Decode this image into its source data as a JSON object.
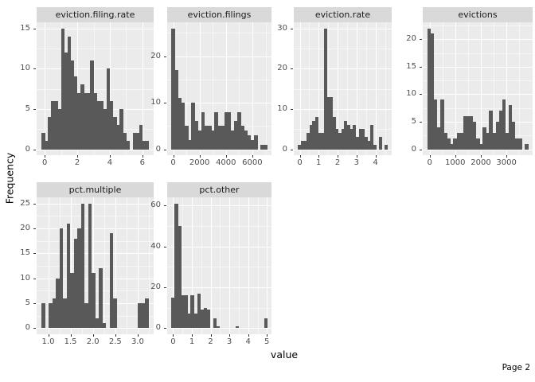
{
  "chart_data": {
    "type": "bar",
    "subtype": "faceted-histogram",
    "y_axis_title": "Frequency",
    "x_axis_title": "value",
    "page_label": "Page 2",
    "legend": "none",
    "grid": "on",
    "colors": {
      "bar": "#595959",
      "panel_bg": "#EBEBEB",
      "strip_bg": "#D9D9D9",
      "gridline": "#FFFFFF",
      "tick_text": "#4D4D4D",
      "strip_text": "#1A1A1A"
    },
    "facets": [
      {
        "title": "eviction.filing.rate",
        "x_tick_values": [
          0,
          2,
          4,
          6
        ],
        "x_tick_labels": [
          "0",
          "2",
          "4",
          "6"
        ],
        "y_ticks": [
          0,
          5,
          10,
          15
        ],
        "bin_start": -0.2,
        "bin_width": 0.2,
        "counts": [
          2,
          1,
          4,
          6,
          6,
          5,
          15,
          12,
          14,
          11,
          9,
          7,
          8,
          7,
          7,
          11,
          7,
          6,
          6,
          5,
          10,
          6,
          4,
          3,
          5,
          2,
          1,
          0,
          2,
          2,
          3,
          1,
          1
        ]
      },
      {
        "title": "eviction.filings",
        "x_tick_values": [
          0,
          2000,
          4000,
          6000
        ],
        "x_tick_labels": [
          "0",
          "2000",
          "4000",
          "6000"
        ],
        "y_ticks": [
          0,
          10,
          20
        ],
        "bin_start": -125,
        "bin_width": 250,
        "counts": [
          26,
          17,
          11,
          10,
          5,
          2,
          10,
          6,
          4,
          8,
          5,
          5,
          4,
          8,
          5,
          5,
          8,
          8,
          4,
          6,
          8,
          5,
          4,
          3,
          2,
          3,
          0,
          1,
          1
        ]
      },
      {
        "title": "eviction.rate",
        "x_tick_values": [
          0,
          1,
          2,
          3,
          4
        ],
        "x_tick_labels": [
          "0",
          "1",
          "2",
          "3",
          "4"
        ],
        "y_ticks": [
          0,
          10,
          20,
          30
        ],
        "bin_start": -0.1,
        "bin_width": 0.153,
        "counts": [
          1,
          2,
          2,
          4,
          6,
          7,
          8,
          4,
          4,
          30,
          13,
          13,
          8,
          5,
          4,
          5,
          7,
          6,
          5,
          6,
          3,
          5,
          5,
          3,
          2,
          6,
          1,
          0,
          3,
          0,
          1
        ]
      },
      {
        "title": "evictions",
        "x_tick_values": [
          0,
          1000,
          2000,
          3000
        ],
        "x_tick_labels": [
          "0",
          "1000",
          "2000",
          "3000"
        ],
        "y_ticks": [
          0,
          5,
          10,
          15,
          20
        ],
        "bin_start": -92.5,
        "bin_width": 127,
        "counts": [
          22,
          21,
          9,
          4,
          9,
          3,
          2,
          1,
          2,
          3,
          3,
          6,
          6,
          6,
          5,
          2,
          1,
          4,
          3,
          7,
          3,
          5,
          7,
          9,
          3,
          8,
          5,
          2,
          2,
          0,
          1
        ]
      },
      {
        "title": "pct.multiple",
        "x_tick_values": [
          1.0,
          1.5,
          2.0,
          2.5,
          3.0
        ],
        "x_tick_labels": [
          "1.0",
          "1.5",
          "2.0",
          "2.5",
          "3.0"
        ],
        "y_ticks": [
          0,
          5,
          10,
          15,
          20,
          25
        ],
        "bin_start": 0.85,
        "bin_width": 0.08,
        "counts": [
          5,
          0,
          5,
          6,
          10,
          20,
          6,
          21,
          11,
          18,
          20,
          25,
          5,
          25,
          11,
          2,
          12,
          1,
          0,
          19,
          6,
          0,
          0,
          0,
          0,
          0,
          0,
          5,
          5,
          6
        ]
      },
      {
        "title": "pct.other",
        "x_tick_values": [
          0,
          1,
          2,
          3,
          4,
          5
        ],
        "x_tick_labels": [
          "0",
          "1",
          "2",
          "3",
          "4",
          "5"
        ],
        "y_ticks": [
          0,
          20,
          40,
          60
        ],
        "bin_start": -0.085,
        "bin_width": 0.17,
        "counts": [
          15,
          61,
          50,
          16,
          16,
          7,
          16,
          7,
          17,
          9,
          10,
          9,
          0,
          5,
          1,
          0,
          0,
          0,
          0,
          0,
          1,
          0,
          0,
          0,
          0,
          0,
          0,
          0,
          0,
          5
        ]
      }
    ]
  }
}
